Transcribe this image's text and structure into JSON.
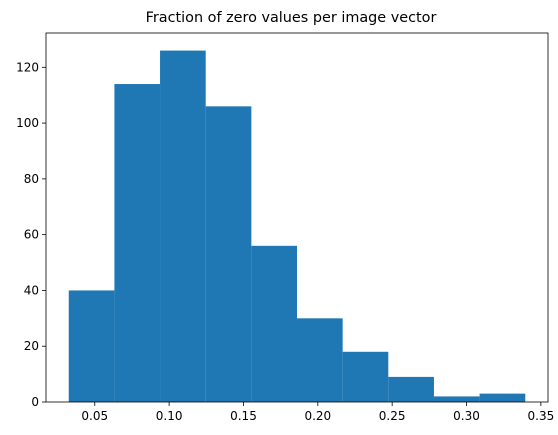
{
  "chart_data": {
    "type": "bar",
    "title": "Fraction of zero values per image vector",
    "xlabel": "",
    "ylabel": "",
    "bins": [
      {
        "x0": 0.0325,
        "x1": 0.0632,
        "count": 40
      },
      {
        "x0": 0.0632,
        "x1": 0.0939,
        "count": 114
      },
      {
        "x0": 0.0939,
        "x1": 0.1246,
        "count": 126
      },
      {
        "x0": 0.1246,
        "x1": 0.1553,
        "count": 106
      },
      {
        "x0": 0.1553,
        "x1": 0.186,
        "count": 56
      },
      {
        "x0": 0.186,
        "x1": 0.2167,
        "count": 30
      },
      {
        "x0": 0.2167,
        "x1": 0.2474,
        "count": 18
      },
      {
        "x0": 0.2474,
        "x1": 0.2781,
        "count": 9
      },
      {
        "x0": 0.2781,
        "x1": 0.3088,
        "count": 2
      },
      {
        "x0": 0.3088,
        "x1": 0.3395,
        "count": 3
      }
    ],
    "xlim": [
      0.0172,
      0.3548
    ],
    "ylim": [
      0,
      132.3
    ],
    "xticks": [
      0.05,
      0.1,
      0.15,
      0.2,
      0.25,
      0.3,
      0.35
    ],
    "xtick_labels": [
      "0.05",
      "0.10",
      "0.15",
      "0.20",
      "0.25",
      "0.30",
      "0.35"
    ],
    "yticks": [
      0,
      20,
      40,
      60,
      80,
      100,
      120
    ],
    "ytick_labels": [
      "0",
      "20",
      "40",
      "60",
      "80",
      "100",
      "120"
    ],
    "bar_color": "#1f77b4",
    "grid": false,
    "legend": "none"
  }
}
